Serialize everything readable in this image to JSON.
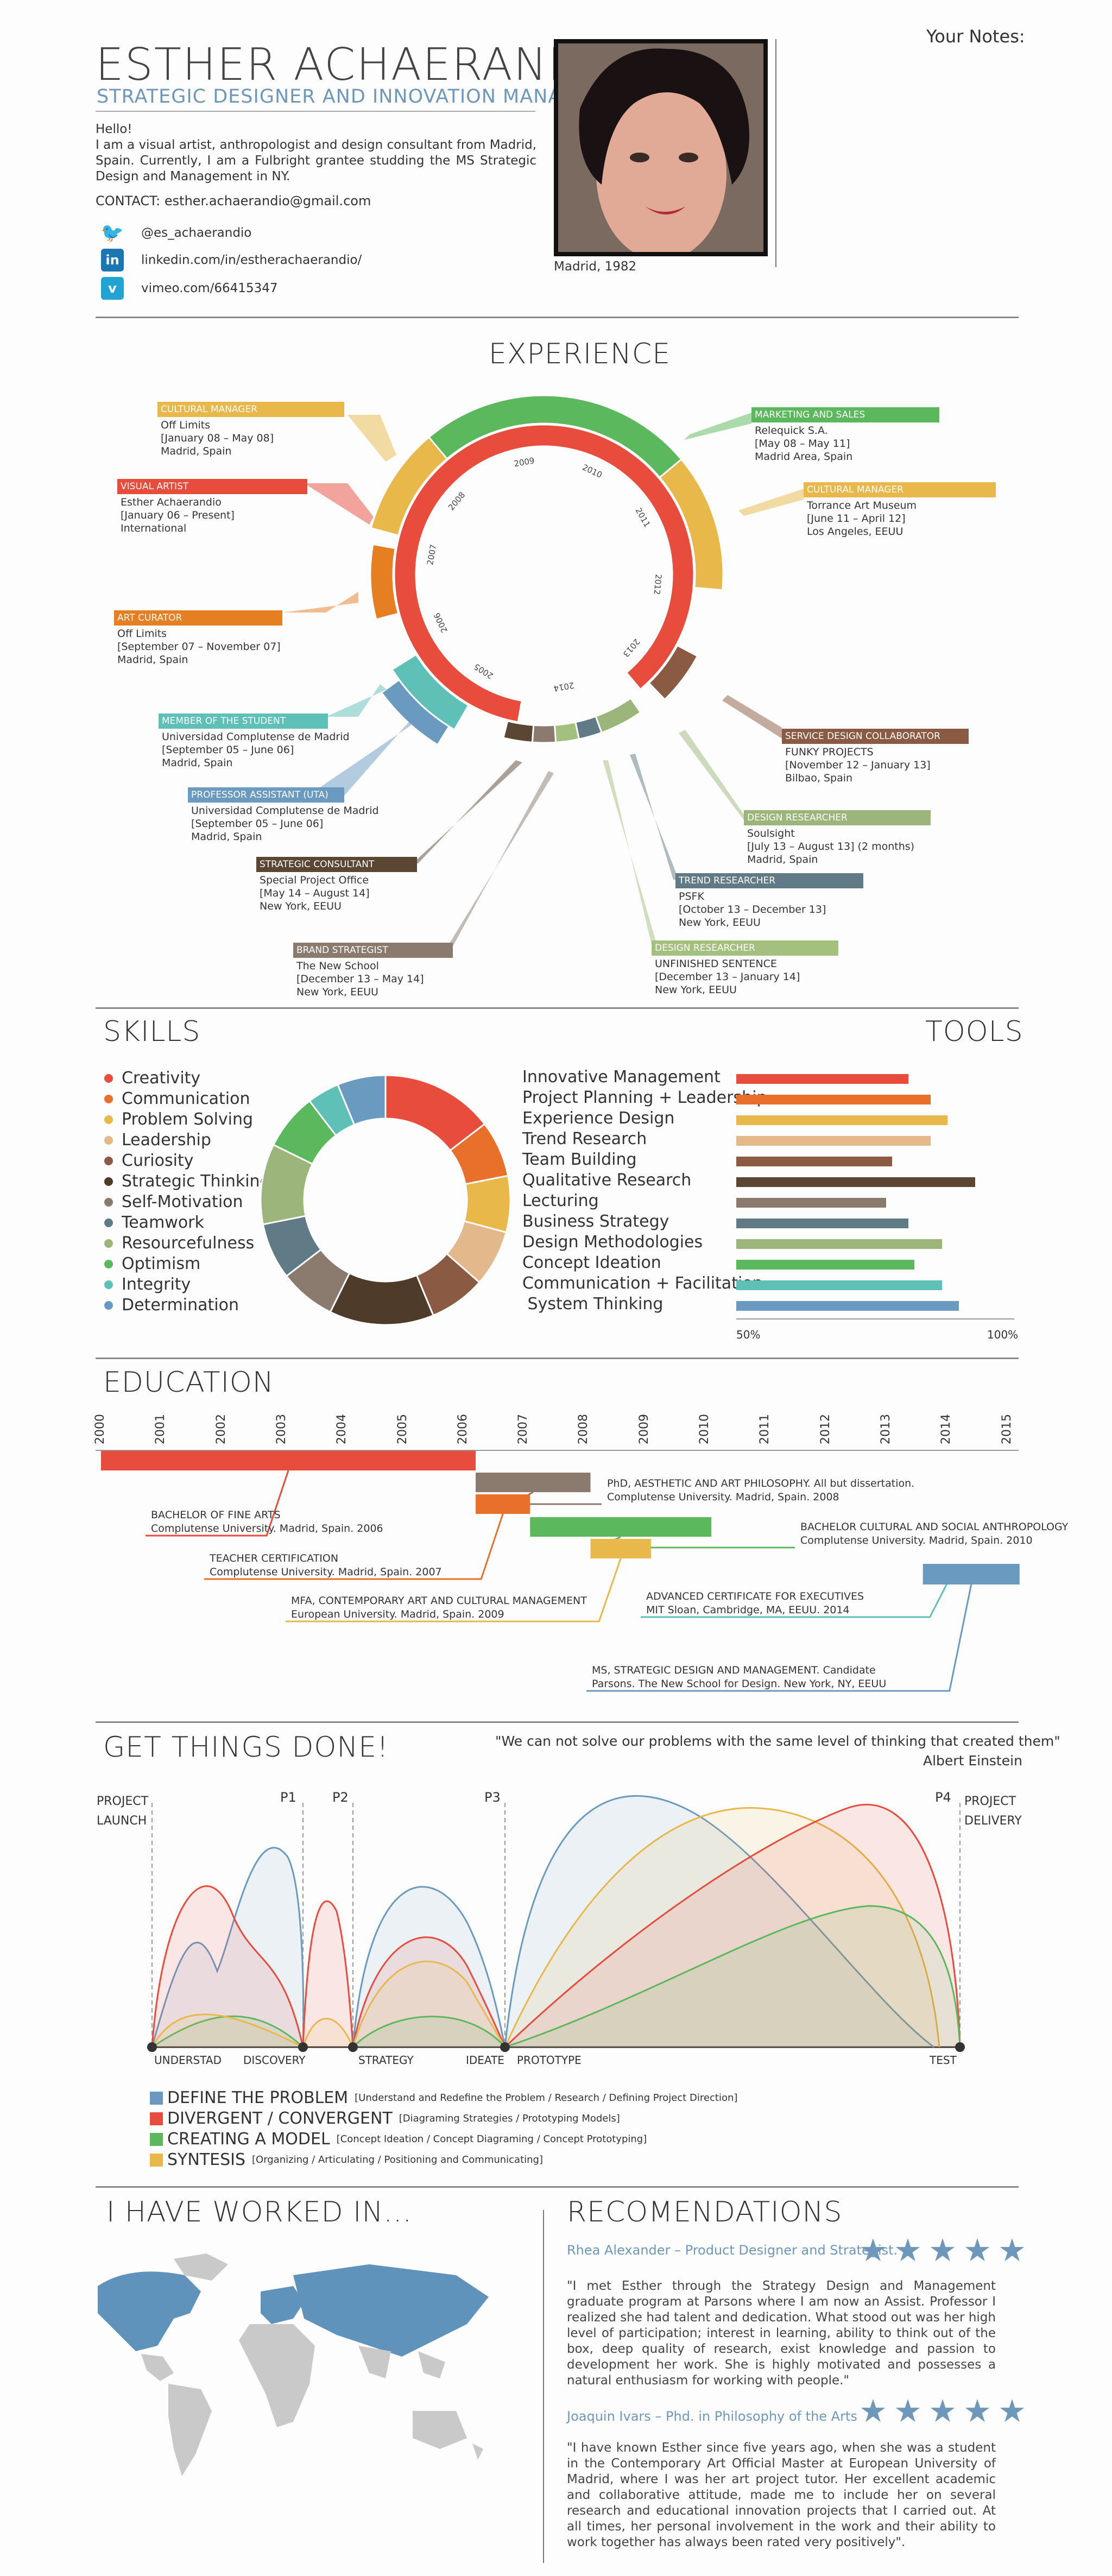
{
  "header": {
    "name": "ESTHER ACHAERANDIO",
    "role": "STRATEGIC DESIGNER AND INNOVATION MANAGER",
    "intro": "Hello!\nI am a visual artist, anthropologist and design consultant from Madrid, Spain. Currently, I am a Fulbright grantee studding the MS Strategic Design and Management in NY.",
    "contact": "CONTACT: esther.achaerandio@gmail.com",
    "social": [
      {
        "icon": "twitter-icon",
        "text": "@es_achaerandio",
        "color": "#2ba9e1"
      },
      {
        "icon": "linkedin-icon",
        "text": "linkedin.com/in/estherachaerandio/",
        "color": "#1a77b4"
      },
      {
        "icon": "vimeo-icon",
        "text": "vimeo.com/66415347",
        "color": "#21a3d4"
      }
    ],
    "photo_caption": "Madrid, 1982",
    "notes_label": "Your Notes:"
  },
  "experience": {
    "title": "EXPERIENCE",
    "years": [
      "2005",
      "2006",
      "2007",
      "2008",
      "2009",
      "2010",
      "2011",
      "2012",
      "2013",
      "2014"
    ],
    "roles": [
      {
        "label": "CULTURAL MANAGER",
        "lines": [
          "Off Limits",
          "[January 08 – May 08]",
          "Madrid, Spain"
        ],
        "color": "#e8b84a"
      },
      {
        "label": "VISUAL ARTIST",
        "lines": [
          "Esther Achaerandio",
          "[January 06 – Present]",
          "International"
        ],
        "color": "#e74c3c"
      },
      {
        "label": "ART CURATOR",
        "lines": [
          "Off Limits",
          "[September 07 – November 07]",
          "Madrid, Spain"
        ],
        "color": "#e67e22"
      },
      {
        "label": "MEMBER OF THE STUDENT COUNCIL",
        "lines": [
          "Universidad Complutense de Madrid",
          "[September 05 – June 06]",
          "Madrid, Spain"
        ],
        "color": "#5fc0b8"
      },
      {
        "label": "PROFESSOR ASSISTANT (UTA)",
        "lines": [
          "Universidad Complutense de Madrid",
          "[September 05 – June 06]",
          "Madrid, Spain"
        ],
        "color": "#6a9ac0"
      },
      {
        "label": "STRATEGIC CONSULTANT",
        "lines": [
          "Special Project Office",
          "[May 14 – August 14]",
          "New York, EEUU"
        ],
        "color": "#5a4633"
      },
      {
        "label": "BRAND STRATEGIST",
        "lines": [
          "The New School",
          "[December 13 – May 14]",
          "New York, EEUU"
        ],
        "color": "#8a7b6e"
      },
      {
        "label": "MARKETING AND SALES",
        "lines": [
          "Relequick S.A.",
          "[May 08 – May 11]",
          "Madrid Area, Spain"
        ],
        "color": "#5cb85c"
      },
      {
        "label": "CULTURAL MANAGER",
        "lines": [
          "Torrance Art Museum",
          "[June 11 – April 12]",
          "Los Angeles, EEUU"
        ],
        "color": "#e8b84a"
      },
      {
        "label": "SERVICE DESIGN COLLABORATOR",
        "lines": [
          "FUNKY PROJECTS",
          "[November 12 – January 13]",
          "Bilbao, Spain"
        ],
        "color": "#8b5a43"
      },
      {
        "label": "DESIGN  RESEARCHER",
        "lines": [
          "Soulsight",
          "[July 13 – August 13] (2 months)",
          "Madrid, Spain"
        ],
        "color": "#9bb57a"
      },
      {
        "label": "TREND RESEARCHER",
        "lines": [
          "PSFK",
          "[October 13 – December 13]",
          "New York, EEUU"
        ],
        "color": "#607b85"
      },
      {
        "label": "DESIGN  RESEARCHER",
        "lines": [
          "UNFINISHED SENTENCE",
          "[December 13 – January 14]",
          "New York, EEUU"
        ],
        "color": "#a3c07e"
      }
    ]
  },
  "skills": {
    "title": "SKILLS",
    "items": [
      {
        "name": "Creativity",
        "color": "#e74c3c",
        "share": 14
      },
      {
        "name": "Communication",
        "color": "#e8702a",
        "share": 7
      },
      {
        "name": "Problem Solving",
        "color": "#e8b84a",
        "share": 7
      },
      {
        "name": "Leadership",
        "color": "#e3b98b",
        "share": 7
      },
      {
        "name": "Curiosity",
        "color": "#8b5a43",
        "share": 7
      },
      {
        "name": "Strategic Thinking",
        "color": "#4e3b2a",
        "share": 13
      },
      {
        "name": "Self-Motivation",
        "color": "#8a7b6e",
        "share": 7
      },
      {
        "name": "Teamwork",
        "color": "#607b85",
        "share": 7
      },
      {
        "name": "Resourcefulness",
        "color": "#9bb57a",
        "share": 10
      },
      {
        "name": "Optimism",
        "color": "#5cb85c",
        "share": 7
      },
      {
        "name": "Integrity",
        "color": "#5fc0b8",
        "share": 4
      },
      {
        "name": "Determination",
        "color": "#6a9ac0",
        "share": 6
      }
    ]
  },
  "tools": {
    "title": "TOOLS",
    "scale": [
      "50%",
      "100%"
    ],
    "items": [
      {
        "name": "Innovative Management",
        "value": 81,
        "color": "#e74c3c"
      },
      {
        "name": "Project Planning + Leadership",
        "value": 85,
        "color": "#e8702a"
      },
      {
        "name": "Experience Design",
        "value": 88,
        "color": "#e8b84a"
      },
      {
        "name": "Trend Research",
        "value": 85,
        "color": "#e3b98b"
      },
      {
        "name": "Team Building",
        "value": 78,
        "color": "#8b5a43"
      },
      {
        "name": "Qualitative Research",
        "value": 93,
        "color": "#5a4633"
      },
      {
        "name": "Lecturing",
        "value": 77,
        "color": "#8a7b6e"
      },
      {
        "name": "Business Strategy",
        "value": 81,
        "color": "#607b85"
      },
      {
        "name": "Design Methodologies",
        "value": 87,
        "color": "#9bb57a"
      },
      {
        "name": "Concept Ideation",
        "value": 82,
        "color": "#5cb85c"
      },
      {
        "name": "Communication + Facilitation",
        "value": 87,
        "color": "#5fc0b8"
      },
      {
        "name": " System Thinking",
        "value": 90,
        "color": "#6a9ac0"
      }
    ]
  },
  "education": {
    "title": "EDUCATION",
    "years": [
      "2000",
      "2001",
      "2002",
      "2003",
      "2004",
      "2005",
      "2006",
      "2007",
      "2008",
      "2009",
      "2010",
      "2011",
      "2012",
      "2013",
      "2014",
      "2015"
    ],
    "items": [
      {
        "l1": "BACHELOR OF FINE ARTS",
        "l2": "Complutense University. Madrid, Spain. 2006",
        "start": 2000,
        "end": 2006.2,
        "color": "#e74c3c"
      },
      {
        "l1": "PhD, AESTHETIC AND ART PHILOSOPHY. All but dissertation.",
        "l2": "Complutense University. Madrid, Spain. 2008",
        "start": 2006.2,
        "end": 2008.1,
        "color": "#8a7b6e"
      },
      {
        "l1": "TEACHER CERTIFICATION",
        "l2": "Complutense University. Madrid, Spain. 2007",
        "start": 2006.2,
        "end": 2007.1,
        "color": "#e8702a"
      },
      {
        "l1": "BACHELOR CULTURAL AND SOCIAL ANTHROPOLOGY",
        "l2": "Complutense University. Madrid, Spain. 2010",
        "start": 2007.1,
        "end": 2010.1,
        "color": "#5cb85c"
      },
      {
        "l1": "MFA, CONTEMPORARY ART AND CULTURAL MANAGEMENT",
        "l2": "European University. Madrid, Spain. 2009",
        "start": 2008.1,
        "end": 2009.1,
        "color": "#e8b84a"
      },
      {
        "l1": "ADVANCED CERTIFICATE FOR EXECUTIVES",
        "l2": "MIT Sloan, Cambridge, MA, EEUU. 2014",
        "start": 2014,
        "end": 2014.15,
        "color": "#5fc0b8"
      },
      {
        "l1": "MS, STRATEGIC DESIGN AND MANAGEMENT. Candidate",
        "l2": "Parsons. The New School for Design. New York, NY, EEUU",
        "start": 2013.6,
        "end": 2015.2,
        "color": "#6a9ac0"
      }
    ]
  },
  "process": {
    "title": "GET THINGS DONE!",
    "quote": "\"We can not solve our problems with the same level of thinking that created them\"",
    "quote_author": "Albert Einstein",
    "launch": [
      "PROJECT",
      "LAUNCH"
    ],
    "delivery": [
      "PROJECT",
      "DELIVERY"
    ],
    "phases": [
      "P1",
      "P2",
      "P3",
      "P4"
    ],
    "steps": [
      "UNDERSTAD",
      "DISCOVERY",
      "STRATEGY",
      "IDEATE",
      "PROTOTYPE",
      "TEST"
    ],
    "legend": [
      {
        "name": "DEFINE THE PROBLEM",
        "desc": "[Understand and Redefine the Problem / Research / Defining Project Direction]",
        "color": "#6a9ac0"
      },
      {
        "name": "DIVERGENT / CONVERGENT",
        "desc": "[Diagraming Strategies / Prototyping Models]",
        "color": "#e74c3c"
      },
      {
        "name": "CREATING A MODEL",
        "desc": "[Concept Ideation / Concept Diagraming / Concept Prototyping]",
        "color": "#5cb85c"
      },
      {
        "name": "SYNTESIS",
        "desc": "[Organizing / Articulating / Positioning and Communicating]",
        "color": "#e8b84a"
      }
    ]
  },
  "worked": {
    "title": "I HAVE WORKED IN..."
  },
  "recommendations": {
    "title": "RECOMENDATIONS",
    "items": [
      {
        "name": "Rhea Alexander – Product Designer and Strategist.",
        "stars": 5,
        "text": "\"I met Esther through the Strategy Design and Management graduate program at Parsons where I am now an Assist. Professor I realized she had talent and dedication. What stood out was her high level of participation; interest in learning, ability to think out of the box, deep quality of research, exist knowledge and passion to development her work. She is highly motivated and possesses a natural enthusiasm for working with people.\""
      },
      {
        "name": "Joaquin Ivars – Phd.  in Philosophy of the Arts",
        "stars": 5,
        "text": "\"I have known Esther since five years ago, when she was a student in the Contemporary Art Official Master at European University of Madrid, where I was her art project tutor. Her excellent academic and collaborative attitude, made me to include her on several research and educational innovation projects that I carried out. At all times, her personal involvement in the work and their ability to work together has always been rated very positively\"."
      }
    ]
  }
}
